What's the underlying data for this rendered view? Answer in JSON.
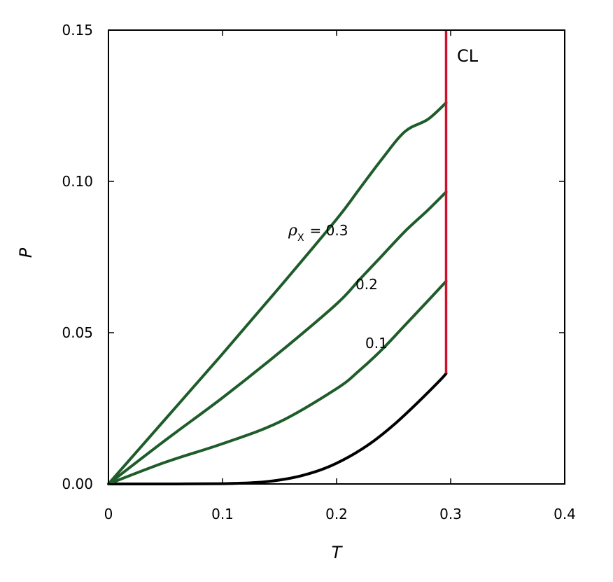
{
  "chart_data": {
    "type": "line",
    "xlabel": "T",
    "ylabel": "P",
    "xlim": [
      0,
      0.4
    ],
    "ylim": [
      0,
      0.15
    ],
    "x_ticks": [
      "0",
      "0.1",
      "0.2",
      "0.3",
      "0.4"
    ],
    "y_ticks": [
      "0.00",
      "0.05",
      "0.10",
      "0.15"
    ],
    "grid": false,
    "series": [
      {
        "color": "#000000",
        "x": [
          0,
          0.05,
          0.1,
          0.13,
          0.15,
          0.17,
          0.19,
          0.21,
          0.23,
          0.25,
          0.27,
          0.29,
          0.296
        ],
        "y": [
          0,
          0,
          0.0001,
          0.0005,
          0.0013,
          0.0028,
          0.0052,
          0.0088,
          0.0135,
          0.0195,
          0.0265,
          0.034,
          0.0365
        ]
      },
      {
        "color": "#1e5c2a",
        "x": [
          0,
          0.05,
          0.1,
          0.15,
          0.2,
          0.22,
          0.24,
          0.26,
          0.28,
          0.296
        ],
        "y": [
          0,
          0.0072,
          0.0133,
          0.0205,
          0.0315,
          0.0375,
          0.0445,
          0.0525,
          0.0605,
          0.067
        ]
      },
      {
        "color": "#1e5c2a",
        "x": [
          0,
          0.05,
          0.1,
          0.15,
          0.2,
          0.22,
          0.24,
          0.26,
          0.28,
          0.296
        ],
        "y": [
          0,
          0.0145,
          0.0285,
          0.0435,
          0.0595,
          0.0675,
          0.0755,
          0.0835,
          0.0905,
          0.0965
        ]
      },
      {
        "color": "#1e5c2a",
        "x": [
          0,
          0.05,
          0.1,
          0.15,
          0.2,
          0.22,
          0.24,
          0.26,
          0.28,
          0.296
        ],
        "y": [
          0,
          0.0215,
          0.043,
          0.065,
          0.0875,
          0.0975,
          0.1075,
          0.1165,
          0.1205,
          0.126
        ]
      }
    ],
    "vertical_line": {
      "color": "#d0112b",
      "x": 0.296,
      "y_from": 0.0365,
      "y_to": 0.15
    },
    "annotations": {
      "cl": "CL",
      "rho_symbol": "ρ",
      "rho_subscript": "X",
      "rho_eq": "= 0.3",
      "label_02": "0.2",
      "label_01": "0.1"
    }
  }
}
